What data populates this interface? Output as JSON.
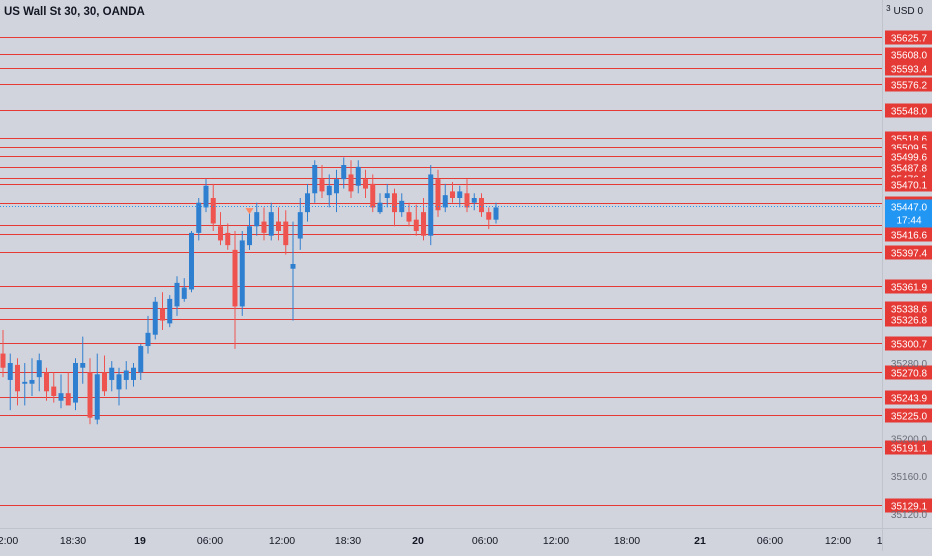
{
  "title": "US Wall St 30, 30, OANDA",
  "currency": "USD",
  "currency_prefix": "3",
  "currency_suffix": "0",
  "colors": {
    "up": "#2f7fd1",
    "down": "#ef5350",
    "level": "#e53935",
    "current": "#2196f3",
    "axis_text": "#131722"
  },
  "x_labels": [
    {
      "text": "2:00",
      "bold": false
    },
    {
      "text": "18:30",
      "bold": false
    },
    {
      "text": "19",
      "bold": true
    },
    {
      "text": "06:00",
      "bold": false
    },
    {
      "text": "12:00",
      "bold": false
    },
    {
      "text": "18:30",
      "bold": false
    },
    {
      "text": "20",
      "bold": true
    },
    {
      "text": "06:00",
      "bold": false
    },
    {
      "text": "12:00",
      "bold": false
    },
    {
      "text": "18:00",
      "bold": false
    },
    {
      "text": "21",
      "bold": true
    },
    {
      "text": "06:00",
      "bold": false
    },
    {
      "text": "12:00",
      "bold": false
    },
    {
      "text": "18:"
    }
  ],
  "y_ticks": [
    "35280.0",
    "35200.0",
    "35160.0",
    "35120.0"
  ],
  "levels": [
    "35625.7",
    "35608.0",
    "35593.4",
    "35576.2",
    "35548.0",
    "35518.6",
    "35509.5",
    "35499.6",
    "35487.8",
    "35476.1",
    "35470.1",
    "35450.2",
    "35426.3",
    "35416.6",
    "35397.4",
    "35361.9",
    "35338.6",
    "35326.8",
    "35300.7",
    "35270.8",
    "35243.9",
    "35225.0",
    "35191.1",
    "35129.1"
  ],
  "current_price": "35447.0",
  "countdown": "17:44",
  "chart_data": {
    "type": "candlestick",
    "y_range": [
      35105,
      35665
    ],
    "candles": [
      {
        "o": 35290,
        "h": 35315,
        "l": 35265,
        "c": 35275
      },
      {
        "o": 35262,
        "h": 35290,
        "l": 35230,
        "c": 35280
      },
      {
        "o": 35278,
        "h": 35285,
        "l": 35235,
        "c": 35250
      },
      {
        "o": 35258,
        "h": 35280,
        "l": 35235,
        "c": 35260
      },
      {
        "o": 35258,
        "h": 35285,
        "l": 35245,
        "c": 35262
      },
      {
        "o": 35265,
        "h": 35290,
        "l": 35250,
        "c": 35283
      },
      {
        "o": 35270,
        "h": 35275,
        "l": 35240,
        "c": 35250
      },
      {
        "o": 35255,
        "h": 35270,
        "l": 35238,
        "c": 35245
      },
      {
        "o": 35240,
        "h": 35268,
        "l": 35232,
        "c": 35248
      },
      {
        "o": 35248,
        "h": 35270,
        "l": 35238,
        "c": 35235
      },
      {
        "o": 35238,
        "h": 35285,
        "l": 35230,
        "c": 35280
      },
      {
        "o": 35275,
        "h": 35308,
        "l": 35258,
        "c": 35280
      },
      {
        "o": 35270,
        "h": 35285,
        "l": 35215,
        "c": 35222
      },
      {
        "o": 35220,
        "h": 35290,
        "l": 35215,
        "c": 35268
      },
      {
        "o": 35270,
        "h": 35288,
        "l": 35245,
        "c": 35250
      },
      {
        "o": 35262,
        "h": 35282,
        "l": 35250,
        "c": 35275
      },
      {
        "o": 35252,
        "h": 35275,
        "l": 35235,
        "c": 35268
      },
      {
        "o": 35262,
        "h": 35282,
        "l": 35252,
        "c": 35272
      },
      {
        "o": 35262,
        "h": 35280,
        "l": 35255,
        "c": 35275
      },
      {
        "o": 35270,
        "h": 35300,
        "l": 35262,
        "c": 35298
      },
      {
        "o": 35298,
        "h": 35330,
        "l": 35290,
        "c": 35312
      },
      {
        "o": 35310,
        "h": 35350,
        "l": 35305,
        "c": 35345
      },
      {
        "o": 35338,
        "h": 35355,
        "l": 35315,
        "c": 35325
      },
      {
        "o": 35322,
        "h": 35352,
        "l": 35318,
        "c": 35348
      },
      {
        "o": 35340,
        "h": 35372,
        "l": 35330,
        "c": 35365
      },
      {
        "o": 35348,
        "h": 35370,
        "l": 35345,
        "c": 35360
      },
      {
        "o": 35358,
        "h": 35420,
        "l": 35355,
        "c": 35418
      },
      {
        "o": 35418,
        "h": 35455,
        "l": 35410,
        "c": 35450
      },
      {
        "o": 35445,
        "h": 35475,
        "l": 35440,
        "c": 35468
      },
      {
        "o": 35455,
        "h": 35470,
        "l": 35420,
        "c": 35428
      },
      {
        "o": 35425,
        "h": 35440,
        "l": 35405,
        "c": 35410
      },
      {
        "o": 35418,
        "h": 35428,
        "l": 35400,
        "c": 35405
      },
      {
        "o": 35400,
        "h": 35420,
        "l": 35295,
        "c": 35340
      },
      {
        "o": 35340,
        "h": 35420,
        "l": 35330,
        "c": 35410
      },
      {
        "o": 35405,
        "h": 35440,
        "l": 35400,
        "c": 35425
      },
      {
        "o": 35425,
        "h": 35450,
        "l": 35415,
        "c": 35440
      },
      {
        "o": 35430,
        "h": 35445,
        "l": 35410,
        "c": 35418
      },
      {
        "o": 35415,
        "h": 35450,
        "l": 35410,
        "c": 35440
      },
      {
        "o": 35430,
        "h": 35445,
        "l": 35410,
        "c": 35420
      },
      {
        "o": 35430,
        "h": 35442,
        "l": 35395,
        "c": 35405
      },
      {
        "o": 35380,
        "h": 35430,
        "l": 35325,
        "c": 35385
      },
      {
        "o": 35412,
        "h": 35455,
        "l": 35400,
        "c": 35440
      },
      {
        "o": 35440,
        "h": 35470,
        "l": 35430,
        "c": 35460
      },
      {
        "o": 35460,
        "h": 35495,
        "l": 35450,
        "c": 35490
      },
      {
        "o": 35475,
        "h": 35490,
        "l": 35455,
        "c": 35462
      },
      {
        "o": 35458,
        "h": 35480,
        "l": 35445,
        "c": 35468
      },
      {
        "o": 35460,
        "h": 35485,
        "l": 35440,
        "c": 35475
      },
      {
        "o": 35475,
        "h": 35498,
        "l": 35465,
        "c": 35490
      },
      {
        "o": 35480,
        "h": 35495,
        "l": 35455,
        "c": 35462
      },
      {
        "o": 35468,
        "h": 35495,
        "l": 35460,
        "c": 35488
      },
      {
        "o": 35475,
        "h": 35485,
        "l": 35455,
        "c": 35465
      },
      {
        "o": 35470,
        "h": 35480,
        "l": 35440,
        "c": 35445
      },
      {
        "o": 35440,
        "h": 35460,
        "l": 35438,
        "c": 35450
      },
      {
        "o": 35455,
        "h": 35470,
        "l": 35445,
        "c": 35460
      },
      {
        "o": 35460,
        "h": 35465,
        "l": 35425,
        "c": 35440
      },
      {
        "o": 35440,
        "h": 35460,
        "l": 35435,
        "c": 35452
      },
      {
        "o": 35440,
        "h": 35450,
        "l": 35425,
        "c": 35430
      },
      {
        "o": 35432,
        "h": 35448,
        "l": 35415,
        "c": 35420
      },
      {
        "o": 35440,
        "h": 35455,
        "l": 35410,
        "c": 35415
      },
      {
        "o": 35415,
        "h": 35490,
        "l": 35405,
        "c": 35480
      },
      {
        "o": 35475,
        "h": 35485,
        "l": 35435,
        "c": 35442
      },
      {
        "o": 35445,
        "h": 35470,
        "l": 35440,
        "c": 35458
      },
      {
        "o": 35462,
        "h": 35472,
        "l": 35450,
        "c": 35455
      },
      {
        "o": 35455,
        "h": 35468,
        "l": 35445,
        "c": 35462
      },
      {
        "o": 35460,
        "h": 35475,
        "l": 35440,
        "c": 35445
      },
      {
        "o": 35450,
        "h": 35460,
        "l": 35442,
        "c": 35455
      },
      {
        "o": 35455,
        "h": 35460,
        "l": 35435,
        "c": 35440
      },
      {
        "o": 35440,
        "h": 35445,
        "l": 35422,
        "c": 35432
      },
      {
        "o": 35432,
        "h": 35450,
        "l": 35428,
        "c": 35445
      }
    ]
  }
}
